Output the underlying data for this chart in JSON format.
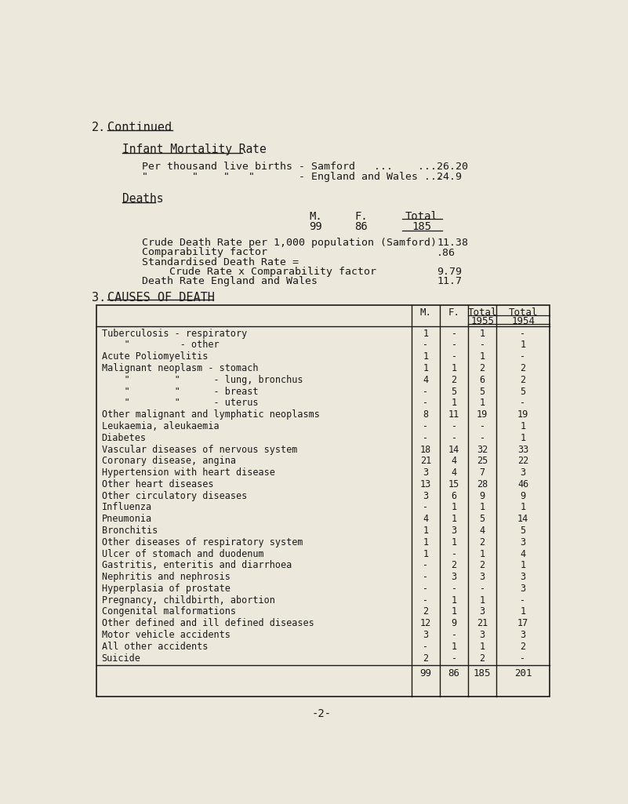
{
  "bg_color": "#ede8dc",
  "text_color": "#1a1a1a",
  "ghost_color": "#c8bfaa",
  "title_section": "2.",
  "title_continued": "Continued",
  "infant_mortality_title": "Infant Mortality Rate",
  "imr_line1_label": "Per thousand live births - Samford   ...    ...",
  "imr_line1_value": "26.20",
  "imr_line2_label": "\"       \"    \"...  \"       - England and Wales ...",
  "imr_line2_value": "24.9",
  "deaths_title": "Deaths",
  "deaths_headers": [
    "M.",
    "F.",
    "Total"
  ],
  "deaths_values": [
    "99",
    "86",
    "185"
  ],
  "crude_rate_label": "Crude Death Rate per 1,000 population (Samford)",
  "crude_rate_value": "11.38",
  "comparability_label": "Comparability factor",
  "comparability_value": ".86",
  "standardised_label": "Standardised Death Rate =",
  "standardised_sub": "Crude Rate x Comparability factor",
  "standardised_value": "9.79",
  "death_rate_eng_label": "Death Rate England and Wales",
  "death_rate_eng_value": "11.7",
  "causes_title_num": "3.",
  "causes_title_text": "CAUSES OF DEATH",
  "table_col_headers": [
    "M.",
    "F.",
    "Total",
    "Total"
  ],
  "table_col_subheaders": [
    "",
    "",
    "1955",
    "1954"
  ],
  "table_rows": [
    [
      "Tuberculosis - respiratory",
      "1",
      "-",
      "1",
      "-"
    ],
    [
      "    \"         - other",
      "-",
      "-",
      "-",
      "1"
    ],
    [
      "Acute Poliomyelitis",
      "1",
      "-",
      "1",
      "-"
    ],
    [
      "Malignant neoplasm - stomach",
      "1",
      "1",
      "2",
      "2"
    ],
    [
      "    \"        \"      - lung, bronchus",
      "4",
      "2",
      "6",
      "2"
    ],
    [
      "    \"        \"      - breast",
      "-",
      "5",
      "5",
      "5"
    ],
    [
      "    \"        \"      - uterus",
      "-",
      "1",
      "1",
      "-"
    ],
    [
      "Other malignant and lymphatic neoplasms",
      "8",
      "11",
      "19",
      "19"
    ],
    [
      "Leukaemia, aleukaemia",
      "-",
      "-",
      "-",
      "1"
    ],
    [
      "Diabetes",
      "-",
      "-",
      "-",
      "1"
    ],
    [
      "Vascular diseases of nervous system",
      "18",
      "14",
      "32",
      "33"
    ],
    [
      "Coronary disease, angina",
      "21",
      "4",
      "25",
      "22"
    ],
    [
      "Hypertension with heart disease",
      "3",
      "4",
      "7",
      "3"
    ],
    [
      "Other heart diseases",
      "13",
      "15",
      "28",
      "46"
    ],
    [
      "Other circulatory diseases",
      "3",
      "6",
      "9",
      "9"
    ],
    [
      "Influenza",
      "-",
      "1",
      "1",
      "1"
    ],
    [
      "Pneumonia",
      "4",
      "1",
      "5",
      "14"
    ],
    [
      "Bronchitis",
      "1",
      "3",
      "4",
      "5"
    ],
    [
      "Other diseases of respiratory system",
      "1",
      "1",
      "2",
      "3"
    ],
    [
      "Ulcer of stomach and duodenum",
      "1",
      "-",
      "1",
      "4"
    ],
    [
      "Gastritis, enteritis and diarrhoea",
      "-",
      "2",
      "2",
      "1"
    ],
    [
      "Nephritis and nephrosis",
      "-",
      "3",
      "3",
      "3"
    ],
    [
      "Hyperplasia of prostate",
      "-",
      "-",
      "-",
      "3"
    ],
    [
      "Pregnancy, childbirth, abortion",
      "-",
      "1",
      "1",
      "-"
    ],
    [
      "Congenital malformations",
      "2",
      "1",
      "3",
      "1"
    ],
    [
      "Other defined and ill defined diseases",
      "12",
      "9",
      "21",
      "17"
    ],
    [
      "Motor vehicle accidents",
      "3",
      "-",
      "3",
      "3"
    ],
    [
      "All other accidents",
      "-",
      "1",
      "1",
      "2"
    ],
    [
      "Suicide",
      "2",
      "-",
      "2",
      "-"
    ]
  ],
  "table_totals": [
    "99",
    "86",
    "185",
    "201"
  ],
  "page_number": "-2-"
}
